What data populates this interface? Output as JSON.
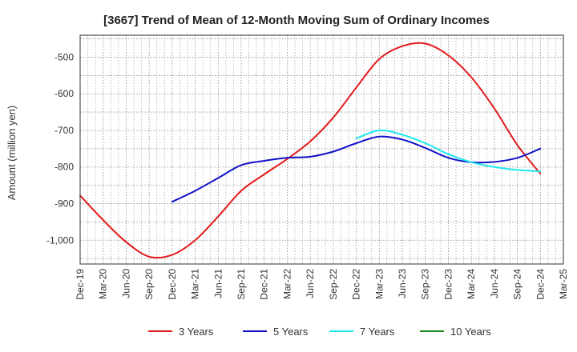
{
  "chart_data": {
    "type": "line",
    "title": "[3667]  Trend of Mean of 12-Month Moving Sum of Ordinary Incomes",
    "xlabel": "",
    "ylabel": "Amount (million yen)",
    "ylim": [
      -1065,
      -440
    ],
    "yticks": [
      -500,
      -600,
      -700,
      -800,
      -900,
      -1000
    ],
    "ytick_labels": [
      "-500",
      "-600",
      "-700",
      "-800",
      "-900",
      "-1,000"
    ],
    "categories": [
      "Dec-19",
      "Mar-20",
      "Jun-20",
      "Sep-20",
      "Dec-20",
      "Mar-21",
      "Jun-21",
      "Sep-21",
      "Dec-21",
      "Mar-22",
      "Jun-22",
      "Sep-22",
      "Dec-22",
      "Mar-23",
      "Jun-23",
      "Sep-23",
      "Dec-23",
      "Mar-24",
      "Jun-24",
      "Sep-24",
      "Dec-24",
      "Mar-25"
    ],
    "grid": true,
    "legend_position": "bottom",
    "series": [
      {
        "name": "3 Years",
        "color": "#e31a1c",
        "values": [
          -878,
          -945,
          -1005,
          -1045,
          -1040,
          -1000,
          -935,
          -865,
          -820,
          -778,
          -730,
          -665,
          -583,
          -505,
          -470,
          -463,
          -495,
          -555,
          -640,
          -740,
          -818,
          null
        ]
      },
      {
        "name": "5 Years",
        "color": "#1010c8",
        "values": [
          null,
          null,
          null,
          null,
          -895,
          -865,
          -830,
          -795,
          -783,
          -775,
          -772,
          -758,
          -735,
          -717,
          -725,
          -748,
          -775,
          -787,
          -786,
          -775,
          -750,
          null
        ]
      },
      {
        "name": "7 Years",
        "color": "#1ee8f0",
        "values": [
          null,
          null,
          null,
          null,
          null,
          null,
          null,
          null,
          null,
          null,
          null,
          null,
          -722,
          -700,
          -712,
          -735,
          -765,
          -787,
          -800,
          -808,
          -812,
          null
        ]
      },
      {
        "name": "10 Years",
        "color": "#1a8a1a",
        "values": [
          null,
          null,
          null,
          null,
          null,
          null,
          null,
          null,
          null,
          null,
          null,
          null,
          null,
          null,
          null,
          null,
          null,
          null,
          null,
          null,
          null,
          null
        ]
      }
    ]
  }
}
